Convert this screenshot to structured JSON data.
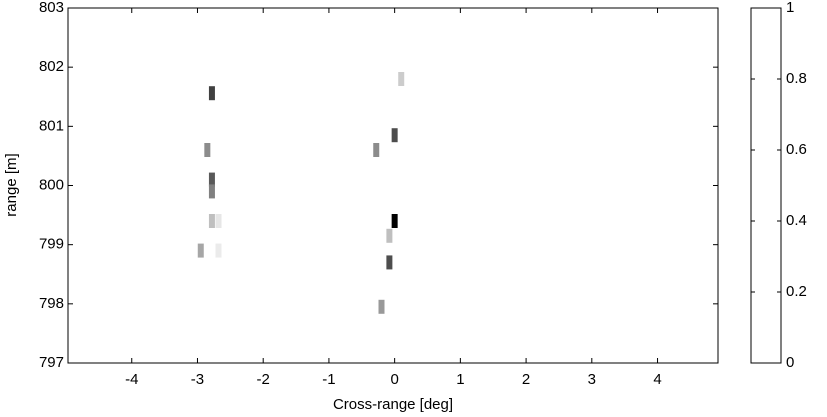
{
  "chart_data": {
    "type": "heatmap",
    "x_label": "Cross-range [deg]",
    "y_label": "range [m]",
    "xlim": [
      -4.97,
      4.92
    ],
    "xticks": [
      -4,
      -3,
      -2,
      -1,
      0,
      1,
      2,
      3,
      4
    ],
    "ylim": [
      797,
      803
    ],
    "yticks": [
      797,
      798,
      799,
      800,
      801,
      802,
      803
    ],
    "colormap": "gray-reversed",
    "colorbar": {
      "lim": [
        0,
        1
      ],
      "ticks": [
        0,
        0.2,
        0.4,
        0.6,
        0.8,
        1
      ]
    },
    "cells": [
      {
        "x": -2.78,
        "y": 801.56,
        "value": 0.75
      },
      {
        "x": -2.85,
        "y": 800.6,
        "value": 0.45
      },
      {
        "x": -2.78,
        "y": 800.1,
        "value": 0.65
      },
      {
        "x": -2.78,
        "y": 799.9,
        "value": 0.5
      },
      {
        "x": -2.78,
        "y": 799.4,
        "value": 0.25
      },
      {
        "x": -2.68,
        "y": 799.4,
        "value": 0.1
      },
      {
        "x": -2.95,
        "y": 798.9,
        "value": 0.35
      },
      {
        "x": -2.68,
        "y": 798.9,
        "value": 0.08
      },
      {
        "x": 0.1,
        "y": 801.8,
        "value": 0.2
      },
      {
        "x": 0.0,
        "y": 800.85,
        "value": 0.7
      },
      {
        "x": -0.28,
        "y": 800.6,
        "value": 0.45
      },
      {
        "x": 0.0,
        "y": 799.4,
        "value": 1.0
      },
      {
        "x": -0.08,
        "y": 799.15,
        "value": 0.25
      },
      {
        "x": -0.08,
        "y": 798.7,
        "value": 0.7
      },
      {
        "x": -0.2,
        "y": 797.95,
        "value": 0.4
      }
    ]
  }
}
